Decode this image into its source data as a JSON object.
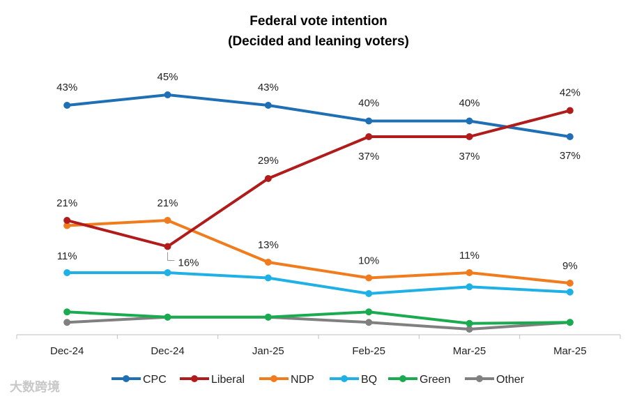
{
  "chart_data": {
    "type": "line",
    "title": "Federal vote intention",
    "subtitle": "(Decided and leaning voters)",
    "xlabel": "",
    "ylabel": "",
    "categories": [
      "Dec-24",
      "Dec-24",
      "Jan-25",
      "Feb-25",
      "Mar-25",
      "Mar-25"
    ],
    "ylim": [
      0,
      50
    ],
    "grid": false,
    "legend_position": "bottom",
    "series": [
      {
        "name": "CPC",
        "color": "#1f6fb4",
        "values": [
          43,
          45,
          43,
          40,
          40,
          37
        ],
        "labels": [
          "43%",
          "45%",
          "43%",
          "40%",
          "40%",
          "37%"
        ]
      },
      {
        "name": "Liberal",
        "color": "#b01c1c",
        "values": [
          21,
          16,
          29,
          37,
          37,
          42
        ],
        "labels": [
          "21%",
          "16%",
          "29%",
          "37%",
          "37%",
          "42%"
        ]
      },
      {
        "name": "NDP",
        "color": "#f07c1e",
        "values": [
          20,
          21,
          13,
          10,
          11,
          9
        ],
        "labels": [
          null,
          "21%",
          "13%",
          "10%",
          "11%",
          "9%"
        ]
      },
      {
        "name": "BQ",
        "color": "#1fb0e6",
        "values": [
          11,
          11,
          10,
          7,
          8.3,
          7.3
        ],
        "labels": [
          "11%",
          null,
          null,
          null,
          null,
          null
        ]
      },
      {
        "name": "Green",
        "color": "#1aaa4f",
        "values": [
          3.5,
          2.5,
          2.5,
          3.5,
          1.3,
          1.5
        ],
        "labels": [
          null,
          null,
          null,
          null,
          null,
          null
        ]
      },
      {
        "name": "Other",
        "color": "#808080",
        "values": [
          1.5,
          2.5,
          2.5,
          1.5,
          0.2,
          1.5
        ],
        "labels": [
          null,
          null,
          null,
          null,
          null,
          null
        ]
      }
    ]
  },
  "watermark": "大数跨境"
}
